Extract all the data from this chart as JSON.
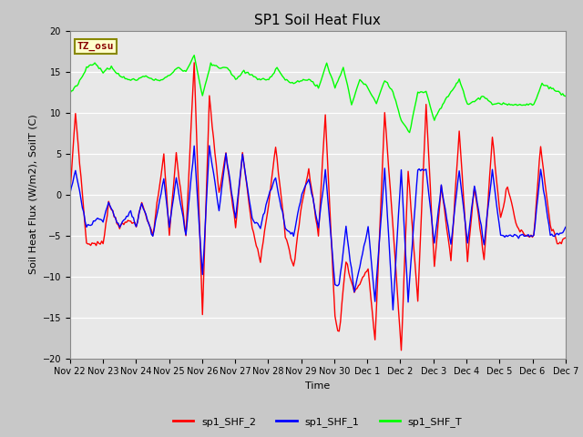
{
  "title": "SP1 Soil Heat Flux",
  "xlabel": "Time",
  "ylabel": "Soil Heat Flux (W/m2), SoilT (C)",
  "ylim": [
    -20,
    20
  ],
  "yticks": [
    -20,
    -15,
    -10,
    -5,
    0,
    5,
    10,
    15,
    20
  ],
  "fig_bg_color": "#c8c8c8",
  "plot_bg_color": "#e8e8e8",
  "grid_color": "white",
  "legend_labels": [
    "sp1_SHF_2",
    "sp1_SHF_1",
    "sp1_SHF_T"
  ],
  "legend_colors": [
    "red",
    "blue",
    "green"
  ],
  "tz_label": "TZ_osu",
  "tz_box_facecolor": "#ffffcc",
  "tz_box_edgecolor": "#888800",
  "tz_text_color": "#880000",
  "xtick_labels": [
    "Nov 22",
    "Nov 23",
    "Nov 24",
    "Nov 25",
    "Nov 26",
    "Nov 27",
    "Nov 28",
    "Nov 29",
    "Nov 30",
    "Dec 1",
    "Dec 2",
    "Dec 3",
    "Dec 4",
    "Dec 5",
    "Dec 6",
    "Dec 7"
  ],
  "n_points": 360,
  "line_width": 1.0,
  "title_fontsize": 11,
  "axis_fontsize": 8,
  "tick_fontsize": 7,
  "legend_fontsize": 8
}
